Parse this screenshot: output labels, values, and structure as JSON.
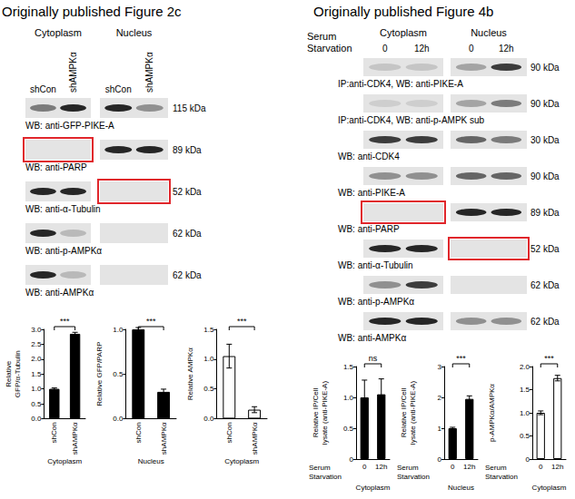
{
  "panels": [
    {
      "title": "Originally published Figure 2c",
      "compartments": [
        "Cytoplasm",
        "Nucleus"
      ],
      "lanes": [
        [
          "shCon",
          "shAMPKα"
        ],
        [
          "shCon",
          "shAMPKα"
        ]
      ],
      "blots": [
        {
          "label": "WB: anti-GFP-PIKE-A",
          "size": "115 kDa"
        },
        {
          "label": "WB: anti-PARP",
          "size": "89 kDa",
          "boxed": "Cytoplasm"
        },
        {
          "label": "WB: anti-α-Tubulin",
          "size": "52 kDa",
          "boxed": "Nucleus"
        },
        {
          "label": "WB: anti-p-AMPKα",
          "size": "62 kDa"
        },
        {
          "label": "WB: anti-AMPKα",
          "size": "62 kDa"
        }
      ]
    },
    {
      "title": "Originally published Figure 4b",
      "condition": "Serum Starvation",
      "compartments": [
        "Cytoplasm",
        "Nucleus"
      ],
      "lanes": [
        [
          "0",
          "12h"
        ],
        [
          "0",
          "12h"
        ]
      ],
      "blots": [
        {
          "label": "IP:anti-CDK4, WB: anti-PIKE-A",
          "size": "90 kDa"
        },
        {
          "label": "IP:anti-CDK4, WB: anti-p-AMPK sub",
          "size": "90 kDa"
        },
        {
          "label": "WB: anti-CDK4",
          "size": "30 kDa"
        },
        {
          "label": "WB: anti-PIKE-A",
          "size": "90 kDa"
        },
        {
          "label": "WB: anti-PARP",
          "size": "89 kDa",
          "boxed": "Cytoplasm"
        },
        {
          "label": "WB: anti-α-Tubulin",
          "size": "52 kDa",
          "boxed": "Nucleus"
        },
        {
          "label": "WB: anti-p-AMPKα",
          "size": "62 kDa"
        },
        {
          "label": "WB: anti-AMPKα",
          "size": "62 kDa"
        }
      ]
    }
  ],
  "chart_data": [
    {
      "type": "bar",
      "ylabel": "Relative GFP/α-Tubulin",
      "xlabel": "Cytoplasm",
      "categories": [
        "shCon",
        "shAMPKα"
      ],
      "values": [
        1.0,
        2.85
      ],
      "errors": [
        0.03,
        0.05
      ],
      "color": "#000000",
      "annotation": "***",
      "ylim": [
        0,
        3
      ],
      "yticks": [
        {
          "value": 0,
          "label": "0.0"
        },
        0.5,
        {
          "value": 1,
          "label": "1.0"
        },
        1.5,
        {
          "value": 2,
          "label": "2.0"
        },
        2.5,
        {
          "value": 3,
          "label": "3.0"
        }
      ],
      "grid": false
    },
    {
      "type": "bar",
      "ylabel": "Relative GFP/PARP",
      "xlabel": "Nucleus",
      "categories": [
        "shCon",
        "shAMPKα"
      ],
      "values": [
        1.0,
        0.3
      ],
      "errors": [
        0.02,
        0.03
      ],
      "color": "#000000",
      "annotation": "***",
      "ylim": [
        0,
        1
      ],
      "yticks": [
        {
          "value": 0,
          "label": "0.0"
        },
        0.5,
        {
          "value": 1,
          "label": "1.0"
        }
      ],
      "grid": false
    },
    {
      "type": "bar",
      "ylabel": "Relative AMPKα",
      "xlabel": "Cytoplasm",
      "categories": [
        "shCon",
        "shAMPKα"
      ],
      "values": [
        1.05,
        0.15
      ],
      "errors": [
        0.2,
        0.05
      ],
      "color": "#ffffff",
      "annotation": "***",
      "ylim": [
        0,
        1.5
      ],
      "yticks": [
        {
          "value": 0,
          "label": "0.0"
        },
        0.5,
        {
          "value": 1,
          "label": "1.0"
        },
        1.5
      ],
      "grid": false
    },
    {
      "type": "bar",
      "ylabel": "Relative IP/Cell lysate (anti-PIKE-A)",
      "xlabel": "Cytoplasm",
      "categories_label": "Serum Starvation",
      "categories": [
        "0",
        "12h"
      ],
      "values": [
        1.0,
        1.05
      ],
      "errors": [
        0.28,
        0.25
      ],
      "color": "#000000",
      "annotation": "ns",
      "ylim": [
        0,
        1.5
      ],
      "yticks": [
        0,
        0.5,
        {
          "value": 1,
          "label": "1.0"
        },
        1.5
      ],
      "grid": false
    },
    {
      "type": "bar",
      "ylabel": "Relative IP/Cell lysate (anti-PIKE-A)",
      "xlabel": "Nucleus",
      "categories_label": "Serum Starvation",
      "categories": [
        "0",
        "12h"
      ],
      "values": [
        1.0,
        1.95
      ],
      "errors": [
        0.03,
        0.1
      ],
      "color": "#000000",
      "annotation": "***",
      "ylim": [
        0,
        3
      ],
      "yticks": [
        0,
        1,
        2,
        3
      ],
      "grid": false
    },
    {
      "type": "bar",
      "ylabel": "p-AMPKα/AMPKα",
      "xlabel": "Cytoplasm",
      "categories_label": "Serum Starvation",
      "categories": [
        "0",
        "12h"
      ],
      "values": [
        1.0,
        1.75
      ],
      "errors": [
        0.04,
        0.06
      ],
      "color": "#ffffff",
      "annotation": "***",
      "ylim": [
        0,
        2
      ],
      "yticks": [
        0,
        0.5,
        {
          "value": 1,
          "label": "1.0"
        },
        1.5,
        {
          "value": 2,
          "label": "2.0"
        }
      ],
      "grid": false
    }
  ]
}
